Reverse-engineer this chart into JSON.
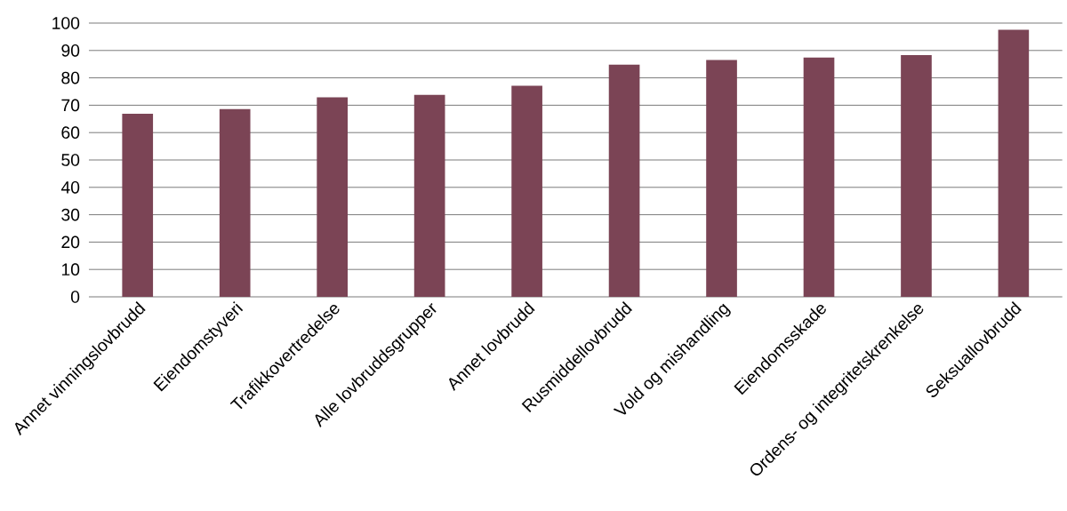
{
  "chart_data": {
    "type": "bar",
    "categories": [
      "Annet vinningslovbrudd",
      "Eiendomstyveri",
      "Trafikkovertredelse",
      "Alle lovbruddsgrupper",
      "Annet lovbrudd",
      "Rusmiddellovbrudd",
      "Vold og mishandling",
      "Eiendomsskade",
      "Ordens- og integritetskrenkelse",
      "Seksuallovbrudd"
    ],
    "values": [
      66.9,
      68.6,
      72.9,
      73.8,
      77.1,
      84.8,
      86.5,
      87.4,
      88.3,
      97.6
    ],
    "color": "#7b4455",
    "ylim": [
      0,
      100
    ],
    "yticks": [
      0,
      10,
      20,
      30,
      40,
      50,
      60,
      70,
      80,
      90,
      100
    ],
    "grid": "y"
  }
}
